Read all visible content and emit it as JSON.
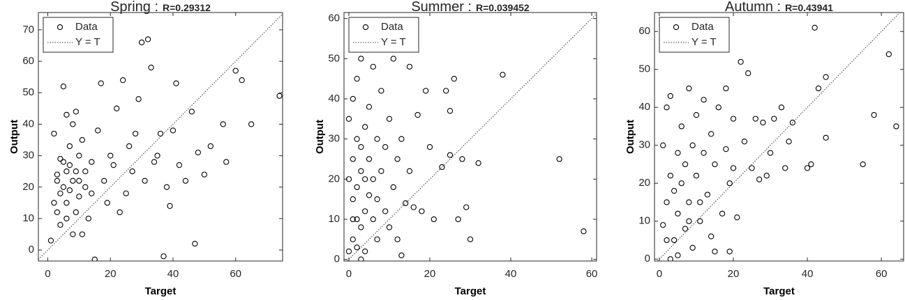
{
  "chart_data": [
    {
      "type": "scatter",
      "title": "Spring :",
      "subtitle": "R=0.29312",
      "x_label": "Target",
      "y_label": "Output",
      "xlim": [
        -3,
        75
      ],
      "ylim": [
        -3.5,
        75.5
      ],
      "xticks": [
        0,
        20,
        40,
        60
      ],
      "yticks": [
        0,
        10,
        20,
        30,
        40,
        50,
        60,
        70
      ],
      "legend": "upper left",
      "reference_line": "Y = T",
      "series": [
        {
          "name": "Data",
          "color": "#000000",
          "x": [
            2,
            3,
            4,
            5,
            5,
            6,
            7,
            8,
            9,
            10,
            3,
            4,
            6,
            7,
            8,
            9,
            10,
            11,
            12,
            13,
            14,
            15,
            16,
            17,
            18,
            19,
            20,
            21,
            22,
            23,
            24,
            25,
            26,
            27,
            28,
            29,
            30,
            31,
            32,
            33,
            34,
            35,
            36,
            37,
            38,
            39,
            40,
            41,
            42,
            44,
            46,
            47,
            48,
            50,
            52,
            56,
            57,
            60,
            62,
            65,
            74,
            1,
            2,
            5,
            6,
            7,
            8,
            11,
            12,
            14,
            9,
            4,
            3,
            6,
            10
          ],
          "y": [
            37,
            24,
            18,
            28,
            52,
            43,
            27,
            22,
            44,
            30,
            12,
            8,
            15,
            19,
            5,
            25,
            17,
            35,
            20,
            10,
            28,
            -3,
            38,
            53,
            22,
            15,
            30,
            27,
            45,
            12,
            54,
            18,
            33,
            25,
            37,
            48,
            66,
            22,
            67,
            58,
            28,
            30,
            37,
            -2,
            20,
            14,
            38,
            53,
            27,
            22,
            44,
            2,
            31,
            24,
            33,
            40,
            28,
            57,
            54,
            40,
            49,
            3,
            15,
            20,
            10,
            33,
            40,
            5,
            25,
            18,
            12,
            29,
            22,
            25,
            22
          ]
        }
      ]
    },
    {
      "type": "scatter",
      "title": "Summer :",
      "subtitle": "R=0.039452",
      "x_label": "Target",
      "y_label": "Output",
      "xlim": [
        -1.2,
        61.2
      ],
      "ylim": [
        -0.4,
        61.5
      ],
      "xticks": [
        0,
        20,
        40,
        60
      ],
      "yticks": [
        0,
        10,
        20,
        30,
        40,
        50,
        60
      ],
      "legend": "upper left",
      "reference_line": "Y = T",
      "series": [
        {
          "name": "Data",
          "color": "#000000",
          "x": [
            0,
            0,
            1,
            1,
            1,
            1,
            2,
            2,
            2,
            2,
            3,
            3,
            3,
            3,
            4,
            4,
            4,
            4,
            5,
            5,
            5,
            6,
            6,
            6,
            7,
            7,
            7,
            8,
            8,
            9,
            9,
            10,
            10,
            11,
            11,
            12,
            12,
            13,
            13,
            14,
            15,
            15,
            16,
            17,
            18,
            19,
            20,
            21,
            23,
            24,
            25,
            25,
            26,
            27,
            28,
            29,
            30,
            32,
            38,
            52,
            58,
            0,
            1,
            2,
            3
          ],
          "y": [
            20,
            35,
            15,
            25,
            5,
            40,
            30,
            10,
            18,
            45,
            22,
            8,
            28,
            50,
            12,
            20,
            33,
            2,
            16,
            25,
            38,
            10,
            20,
            48,
            5,
            15,
            30,
            22,
            42,
            12,
            28,
            8,
            35,
            18,
            50,
            25,
            5,
            1,
            30,
            14,
            48,
            22,
            13,
            36,
            12,
            42,
            28,
            10,
            23,
            42,
            26,
            37,
            45,
            10,
            25,
            13,
            5,
            24,
            46,
            25,
            7,
            2,
            10,
            3,
            0
          ]
        }
      ]
    },
    {
      "type": "scatter",
      "title": "Autumn :",
      "subtitle": "R=0.43941",
      "x_label": "Target",
      "y_label": "Output",
      "xlim": [
        -1.3,
        66
      ],
      "ylim": [
        -0.5,
        65
      ],
      "xticks": [
        0,
        20,
        40,
        60
      ],
      "yticks": [
        0,
        10,
        20,
        30,
        40,
        50,
        60
      ],
      "legend": "upper left",
      "reference_line": "Y = T",
      "series": [
        {
          "name": "Data",
          "color": "#000000",
          "x": [
            1,
            1,
            2,
            2,
            3,
            3,
            3,
            4,
            4,
            5,
            5,
            6,
            6,
            7,
            7,
            8,
            8,
            9,
            9,
            10,
            10,
            11,
            12,
            12,
            13,
            14,
            14,
            15,
            15,
            16,
            17,
            18,
            18,
            19,
            19,
            20,
            20,
            21,
            22,
            23,
            24,
            25,
            26,
            27,
            28,
            29,
            30,
            31,
            33,
            34,
            35,
            36,
            40,
            41,
            42,
            43,
            45,
            45,
            55,
            58,
            62,
            64,
            2,
            5,
            8,
            11
          ],
          "y": [
            30,
            9,
            40,
            15,
            22,
            0,
            43,
            18,
            5,
            28,
            12,
            35,
            20,
            8,
            25,
            45,
            15,
            30,
            3,
            22,
            38,
            10,
            28,
            42,
            17,
            6,
            33,
            25,
            2,
            40,
            12,
            45,
            29,
            20,
            2,
            37,
            24,
            11,
            52,
            31,
            49,
            24,
            37,
            21,
            36,
            22,
            28,
            37,
            40,
            24,
            31,
            36,
            24,
            25,
            61,
            45,
            48,
            32,
            25,
            38,
            54,
            35,
            5,
            1,
            10,
            15
          ]
        }
      ]
    }
  ]
}
